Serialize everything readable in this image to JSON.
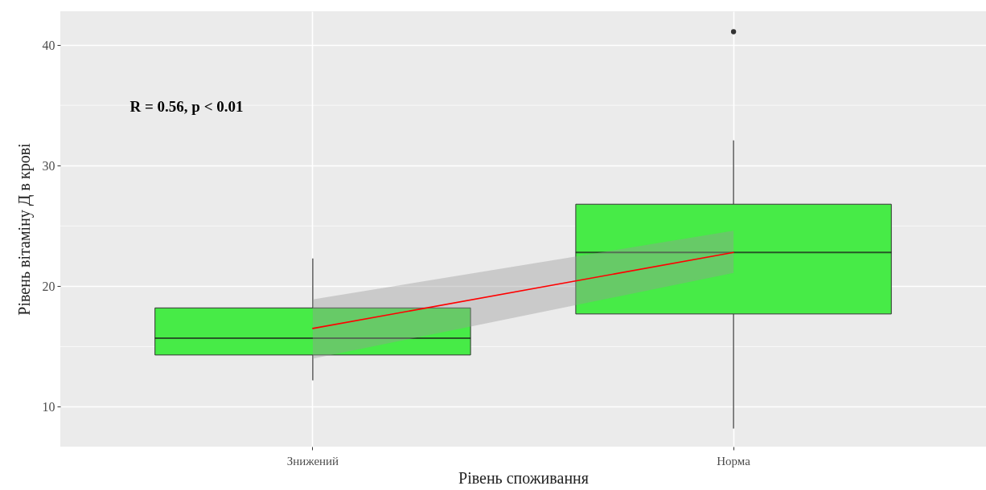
{
  "chart_data": {
    "type": "box",
    "categories": [
      "Знижений",
      "Норма"
    ],
    "series": [
      {
        "type": "box",
        "color": "#47eb47",
        "boxes": [
          {
            "low": 12.2,
            "q1": 14.3,
            "median": 15.7,
            "q3": 18.2,
            "high": 22.3
          },
          {
            "low": 8.2,
            "q1": 17.7,
            "median": 22.8,
            "q3": 26.8,
            "high": 32.1,
            "outliers": [
              41.1
            ]
          }
        ]
      },
      {
        "type": "line",
        "color": "#ff0000",
        "x": [
          "Знижений",
          "Норма"
        ],
        "values": [
          16.5,
          22.8
        ],
        "lower": [
          14.0,
          21.1
        ],
        "upper": [
          18.9,
          24.6
        ]
      }
    ],
    "xlabel": "Рівень споживання",
    "ylabel": "Рівень вітаміну Д в крові",
    "ylim": [
      6.7,
      42.8
    ],
    "yticks": [
      10,
      20,
      30,
      40
    ],
    "annotations": [
      "R = 0.56, p < 0.01"
    ],
    "grid": true
  }
}
